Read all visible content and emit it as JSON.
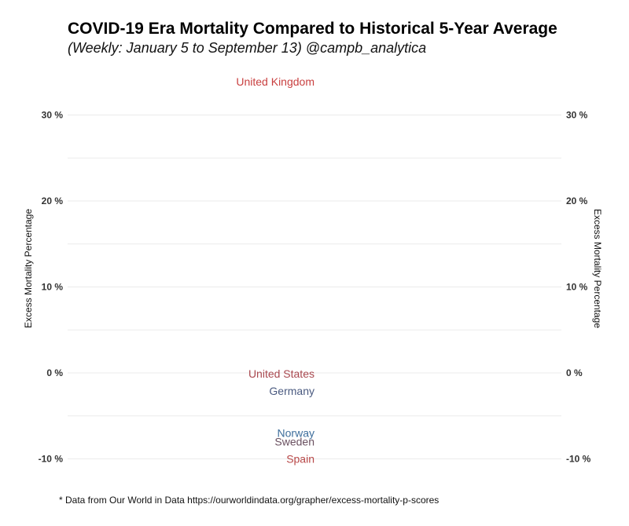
{
  "chart_data": {
    "type": "line",
    "title": "COVID-19 Era Mortality Compared to Historical 5-Year Average",
    "subtitle": "(Weekly: January 5 to September 13) @campb_analytica",
    "ylabel": "Excess Mortality Percentage",
    "ylabel_right": "Excess Mortality Percentage",
    "ylim": [
      -11,
      34
    ],
    "yticks": [
      -10,
      0,
      10,
      20,
      30
    ],
    "ytick_labels": [
      "-10 %",
      "0 %",
      "10 %",
      "20 %",
      "30 %"
    ],
    "grid": true,
    "series": [
      {
        "name": "United Kingdom",
        "end_value": 33.9,
        "color": "#c94040"
      },
      {
        "name": "United States",
        "end_value": -0.1,
        "color": "#a9484f"
      },
      {
        "name": "Germany",
        "end_value": -2.1,
        "color": "#4a5a80"
      },
      {
        "name": "Norway",
        "end_value": -7.0,
        "color": "#3e6e9c"
      },
      {
        "name": "Sweden",
        "end_value": -8.0,
        "color": "#6a5060"
      },
      {
        "name": "Spain",
        "end_value": -10.0,
        "color": "#b84848"
      }
    ]
  },
  "caption": "* Data from Our World in Data https://ourworldindata.org/grapher/excess-mortality-p-scores"
}
